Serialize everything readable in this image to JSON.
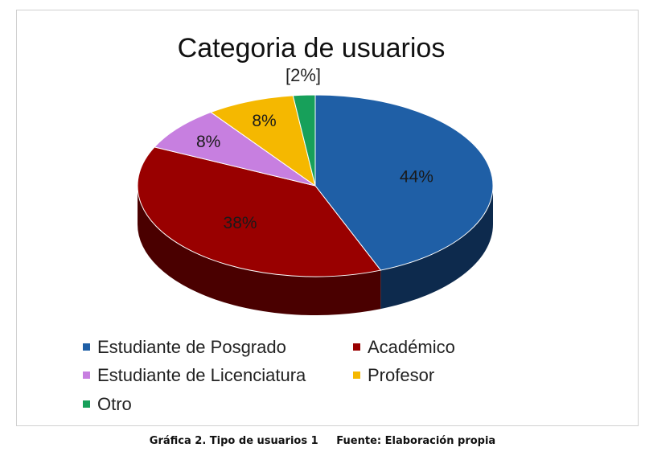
{
  "chart_data": {
    "type": "pie",
    "title": "Categoria de usuarios",
    "subtitle": "[2%]",
    "slices": [
      {
        "label": "Estudiante de Posgrado",
        "value": 44,
        "display": "44%",
        "color": "#1f5fa6",
        "side": "#0d2a4d"
      },
      {
        "label": "Académico",
        "value": 38,
        "display": "38%",
        "color": "#990000",
        "side": "#4a0000"
      },
      {
        "label": "Estudiante de Licenciatura",
        "value": 8,
        "display": "8%",
        "color": "#c77fe0",
        "side": "#7a4a8c"
      },
      {
        "label": "Profesor",
        "value": 8,
        "display": "8%",
        "color": "#f5b800",
        "side": "#9a7300"
      },
      {
        "label": "Otro",
        "value": 2,
        "display": "",
        "color": "#17a05a",
        "side": "#0b5a32"
      }
    ],
    "legend_position": "bottom"
  },
  "caption": "Gráfica 2. Tipo de usuarios 1     Fuente: Elaboración propia"
}
